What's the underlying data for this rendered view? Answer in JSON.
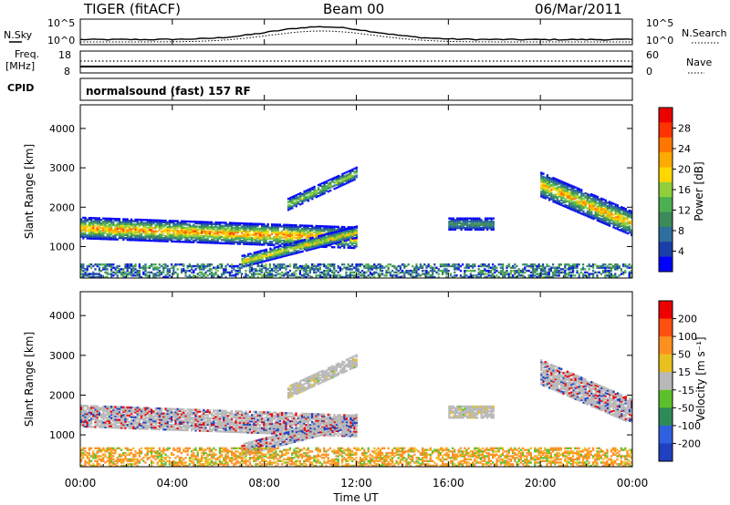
{
  "header": {
    "radar": "TIGER (fitACF)",
    "beam": "Beam 00",
    "date": "06/Mar/2011"
  },
  "top_panels": {
    "nsky_label": "N.Sky",
    "nsearch_label": "N.Search",
    "noise_ticks": [
      "10^5",
      "10^0"
    ],
    "freq_label": "Freq.",
    "freq_unit": "[MHz]",
    "freq_ticks": [
      "18",
      "8"
    ],
    "nave_label": "Nave",
    "nave_ticks": [
      "60",
      "0"
    ],
    "cpid_label": "CPID",
    "cpid_text": "normalsound (fast) 157 RF"
  },
  "chart_data": [
    {
      "type": "heatmap",
      "name": "power",
      "ylabel": "Slant Range [km]",
      "ylim": [
        200,
        4600
      ],
      "yticks": [
        "4000",
        "3000",
        "2000",
        "1000"
      ],
      "xlim": [
        "00:00",
        "24:00"
      ],
      "colorbar": {
        "label": "Power [dB]",
        "ticks": [
          "28",
          "24",
          "20",
          "16",
          "12",
          "8",
          "4"
        ],
        "colors": [
          "#0000ff",
          "#1a3fa8",
          "#2e6f9e",
          "#3c8a5a",
          "#4caf50",
          "#8fcf3c",
          "#ffd700",
          "#ffaa00",
          "#ff7700",
          "#ff3300",
          "#ee0000"
        ]
      },
      "features": [
        {
          "from": "00:00",
          "to": "12:00",
          "range_start": 1500,
          "range_end": 1250,
          "peak": 26
        },
        {
          "from": "07:20",
          "to": "12:30",
          "range_start": 650,
          "range_end": 1400,
          "peak": 22
        },
        {
          "from": "09:00",
          "to": "12:00",
          "range_start": 2100,
          "range_end": 2900,
          "peak": 18
        },
        {
          "from": "20:00",
          "to": "24:00",
          "range_start": 2600,
          "range_end": 1600,
          "peak": 24
        },
        {
          "from": "16:40",
          "to": "18:30",
          "range_start": 1600,
          "range_end": 1600,
          "peak": 12
        }
      ]
    },
    {
      "type": "heatmap",
      "name": "velocity",
      "ylabel": "Slant Range [km]",
      "ylim": [
        200,
        4600
      ],
      "yticks": [
        "4000",
        "3000",
        "2000",
        "1000"
      ],
      "xlim": [
        "00:00",
        "24:00"
      ],
      "colorbar": {
        "label": "Velocity [m s⁻¹]",
        "ticks": [
          "200",
          "100",
          "50",
          "15",
          "-15",
          "-50",
          "-100",
          "-200"
        ],
        "colors": [
          "#2040c0",
          "#3060e0",
          "#2e8b57",
          "#5cc02a",
          "#b8b8b8",
          "#e8c020",
          "#ff9020",
          "#ff5010",
          "#ee0000"
        ]
      }
    }
  ],
  "x_axis": {
    "ticks": [
      "00:00",
      "04:00",
      "08:00",
      "12:00",
      "16:00",
      "20:00",
      "00:00"
    ],
    "label": "Time UT"
  }
}
